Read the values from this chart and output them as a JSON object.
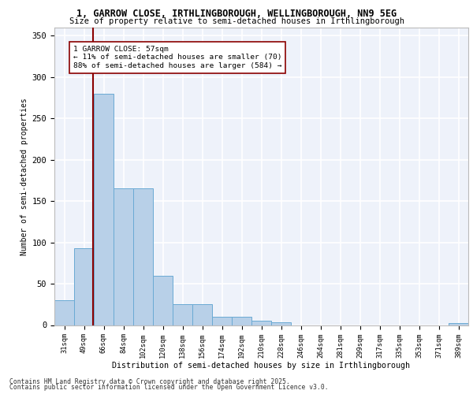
{
  "title1": "1, GARROW CLOSE, IRTHLINGBOROUGH, WELLINGBOROUGH, NN9 5EG",
  "title2": "Size of property relative to semi-detached houses in Irthlingborough",
  "xlabel": "Distribution of semi-detached houses by size in Irthlingborough",
  "ylabel": "Number of semi-detached properties",
  "categories": [
    "31sqm",
    "49sqm",
    "66sqm",
    "84sqm",
    "102sqm",
    "120sqm",
    "138sqm",
    "156sqm",
    "174sqm",
    "192sqm",
    "210sqm",
    "228sqm",
    "246sqm",
    "264sqm",
    "281sqm",
    "299sqm",
    "317sqm",
    "335sqm",
    "353sqm",
    "371sqm",
    "389sqm"
  ],
  "values": [
    30,
    93,
    280,
    165,
    165,
    60,
    25,
    25,
    10,
    10,
    5,
    3,
    0,
    0,
    0,
    0,
    0,
    0,
    0,
    0,
    2
  ],
  "bar_color": "#b8d0e8",
  "bar_edge_color": "#6aaad4",
  "property_line_x": 1.45,
  "property_line_label": "1 GARROW CLOSE: 57sqm",
  "annotation_line1": "← 11% of semi-detached houses are smaller (70)",
  "annotation_line2": "88% of semi-detached houses are larger (584) →",
  "line_color": "#8b0000",
  "ylim": [
    0,
    360
  ],
  "yticks": [
    0,
    50,
    100,
    150,
    200,
    250,
    300,
    350
  ],
  "background_color": "#eef2fa",
  "grid_color": "#ffffff",
  "footer1": "Contains HM Land Registry data © Crown copyright and database right 2025.",
  "footer2": "Contains public sector information licensed under the Open Government Licence v3.0."
}
